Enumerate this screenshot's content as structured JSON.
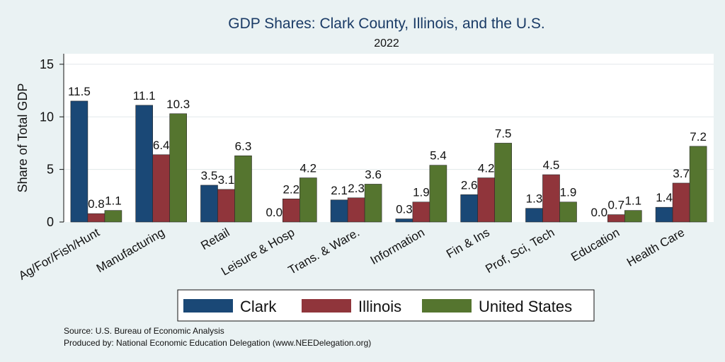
{
  "chart_data": {
    "type": "bar",
    "title": "GDP Shares: Clark County, Illinois, and the U.S.",
    "subtitle": "2022",
    "xlabel": "",
    "ylabel": "Share of Total GDP",
    "ylim": [
      0,
      16
    ],
    "yticks": [
      0,
      5,
      10,
      15
    ],
    "grid": true,
    "legend": "bottom",
    "categories": [
      "Ag/For/Fish/Hunt",
      "Manufacturing",
      "Retail",
      "Leisure & Hosp",
      "Trans. & Ware.",
      "Information",
      "Fin & Ins",
      "Prof, Sci, Tech",
      "Education",
      "Health Care"
    ],
    "series": [
      {
        "name": "Clark",
        "color": "#1a4876",
        "values": [
          11.5,
          11.1,
          3.5,
          0.0,
          2.1,
          0.3,
          2.6,
          1.3,
          0.0,
          1.4
        ]
      },
      {
        "name": "Illinois",
        "color": "#90353b",
        "values": [
          0.8,
          6.4,
          3.1,
          2.2,
          2.3,
          1.9,
          4.2,
          4.5,
          0.7,
          3.7
        ]
      },
      {
        "name": "United States",
        "color": "#55752f",
        "values": [
          1.1,
          10.3,
          6.3,
          4.2,
          3.6,
          5.4,
          7.5,
          1.9,
          1.1,
          7.2
        ]
      }
    ]
  },
  "footer": {
    "source": "Source: U.S. Bureau of Economic Analysis",
    "produced_by": "Produced by: National Economic Education Delegation (www.NEEDelegation.org)"
  }
}
